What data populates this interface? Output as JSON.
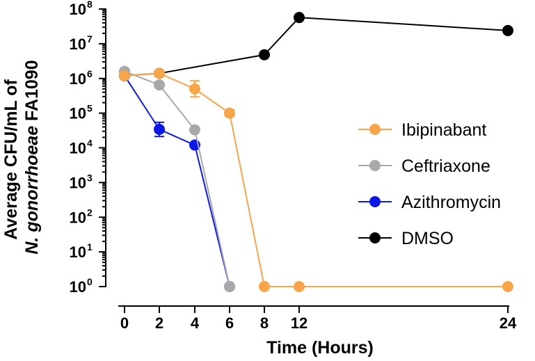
{
  "chart_data": {
    "type": "line",
    "xlabel": "Time (Hours)",
    "ylabel_line1": "Average CFU/mL of",
    "ylabel_line2_italic": "N. gonorrhoeae",
    "ylabel_line2_rest": " FA1090",
    "y_scale": "log10",
    "ylim": [
      1,
      100000000
    ],
    "y_ticks": [
      {
        "base": "10",
        "exp": "0"
      },
      {
        "base": "10",
        "exp": "1"
      },
      {
        "base": "10",
        "exp": "2"
      },
      {
        "base": "10",
        "exp": "3"
      },
      {
        "base": "10",
        "exp": "4"
      },
      {
        "base": "10",
        "exp": "5"
      },
      {
        "base": "10",
        "exp": "6"
      },
      {
        "base": "10",
        "exp": "7"
      },
      {
        "base": "10",
        "exp": "8"
      }
    ],
    "x_ticks": [
      "0",
      "2",
      "4",
      "6",
      "8",
      "12",
      "24"
    ],
    "grid": false,
    "legend_position": "right",
    "series": [
      {
        "name": "Ibipinabant",
        "color": "#F8A449",
        "points": [
          {
            "x": "0",
            "y": 1200000,
            "err": 1.18
          },
          {
            "x": "2",
            "y": 1400000,
            "err": 1.15
          },
          {
            "x": "4",
            "y": 500000,
            "err": 1.7
          },
          {
            "x": "6",
            "y": 100000,
            "err": 1.25
          },
          {
            "x": "8",
            "y": 1
          },
          {
            "x": "12",
            "y": 1
          },
          {
            "x": "24",
            "y": 1
          }
        ]
      },
      {
        "name": "Ceftriaxone",
        "color": "#A8A8AA",
        "points": [
          {
            "x": "0",
            "y": 1600000,
            "err": 1.1
          },
          {
            "x": "2",
            "y": 650000,
            "err": 1.2
          },
          {
            "x": "4",
            "y": 33000,
            "err": 1.15
          },
          {
            "x": "6",
            "y": 1
          }
        ]
      },
      {
        "name": "Azithromycin",
        "color": "#0A17E8",
        "points": [
          {
            "x": "0",
            "y": 1200000
          },
          {
            "x": "2",
            "y": 34000,
            "err": 1.6
          },
          {
            "x": "4",
            "y": 12000
          },
          {
            "x": "6",
            "y": 1
          }
        ]
      },
      {
        "name": "DMSO",
        "color": "#000000",
        "points": [
          {
            "x": "0",
            "y": 1200000
          },
          {
            "x": "2",
            "y": 1400000
          },
          {
            "x": "8",
            "y": 4800000
          },
          {
            "x": "12",
            "y": 57000000
          },
          {
            "x": "24",
            "y": 24000000
          }
        ]
      }
    ]
  }
}
